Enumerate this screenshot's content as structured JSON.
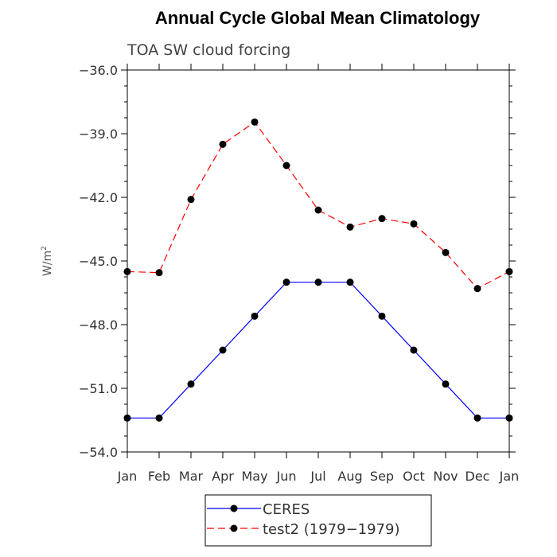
{
  "chart_data": {
    "type": "line",
    "title": "Annual Cycle Global Mean Climatology",
    "subtitle": "TOA SW cloud forcing",
    "ylabel": "W/m",
    "ylabel_sup": "2",
    "ylim": [
      -54.0,
      -36.0
    ],
    "yticks": [
      -54.0,
      -51.0,
      -48.0,
      -45.0,
      -42.0,
      -39.0,
      -36.0
    ],
    "ytick_labels": [
      "−54.0",
      "−51.0",
      "−48.0",
      "−45.0",
      "−42.0",
      "−39.0",
      "−36.0"
    ],
    "categories": [
      "Jan",
      "Feb",
      "Mar",
      "Apr",
      "May",
      "Jun",
      "Jul",
      "Aug",
      "Sep",
      "Oct",
      "Nov",
      "Dec",
      "Jan"
    ],
    "series": [
      {
        "name": "CERES",
        "color": "#0000ff",
        "dash": "solid",
        "values": [
          -52.4,
          -52.4,
          -50.8,
          -49.2,
          -47.6,
          -46.0,
          -46.0,
          -46.0,
          -47.6,
          -49.2,
          -50.8,
          -52.4,
          -52.4
        ]
      },
      {
        "name": "test2 (1979−1979)",
        "color": "#ff0000",
        "dash": "dashed",
        "values": [
          -45.5,
          -45.55,
          -42.1,
          -39.5,
          -38.45,
          -40.5,
          -42.6,
          -43.4,
          -43.0,
          -43.25,
          -44.6,
          -46.3,
          -45.5
        ]
      }
    ],
    "grid": false,
    "legend_position": "bottom-center"
  }
}
